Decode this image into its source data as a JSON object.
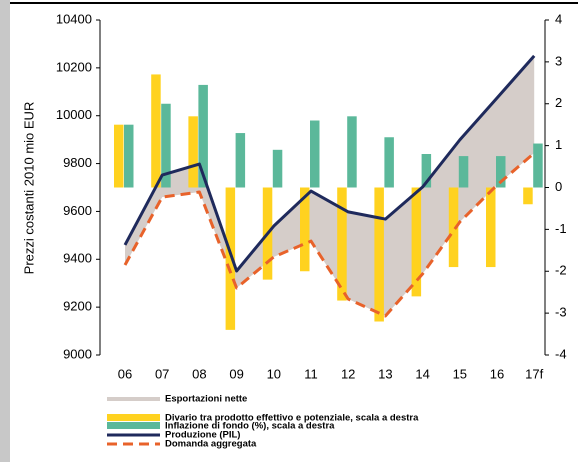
{
  "chart_data": {
    "type": "combo",
    "y_label": "Prezzi costanti 2010 mio EUR",
    "categories": [
      "06",
      "07",
      "08",
      "09",
      "10",
      "11",
      "12",
      "13",
      "14",
      "15",
      "16",
      "17f"
    ],
    "ylim": [
      9000,
      10400
    ],
    "yticks": [
      9000,
      9200,
      9400,
      9600,
      9800,
      10000,
      10200,
      10400
    ],
    "y2lim": [
      -4,
      4
    ],
    "y2ticks": [
      -4,
      -3,
      -2,
      -1,
      0,
      1,
      2,
      3,
      4
    ],
    "series": [
      {
        "name": "Esportazioni nette",
        "type": "area",
        "color": "#d5cdc9"
      },
      {
        "name": "Divario tra prodotto effettivo e potenziale, scala a destra",
        "type": "bar",
        "axis": "y2",
        "color": "#ffd21f",
        "values": [
          1.5,
          2.7,
          1.7,
          -3.4,
          -2.2,
          -2.0,
          -2.7,
          -3.2,
          -2.6,
          -1.9,
          -1.9,
          -0.4
        ]
      },
      {
        "name": "Inflazione di fondo (%), scala a destra",
        "type": "bar",
        "axis": "y2",
        "color": "#5bb89a",
        "values": [
          1.5,
          2.0,
          2.45,
          1.3,
          0.9,
          1.6,
          1.7,
          1.2,
          0.8,
          0.75,
          0.75,
          1.05
        ]
      },
      {
        "name": "Produzione (PIL)",
        "type": "line",
        "color": "#1f2a5c",
        "values": [
          9460,
          9752,
          9798,
          9351,
          9539,
          9685,
          9598,
          9568,
          9702,
          9899,
          10074,
          10250
        ]
      },
      {
        "name": "Domanda aggregata",
        "type": "dashed",
        "color": "#e8622a",
        "values": [
          9376,
          9660,
          9681,
          9280,
          9410,
          9476,
          9234,
          9163,
          9339,
          9556,
          9710,
          9844
        ]
      }
    ]
  }
}
